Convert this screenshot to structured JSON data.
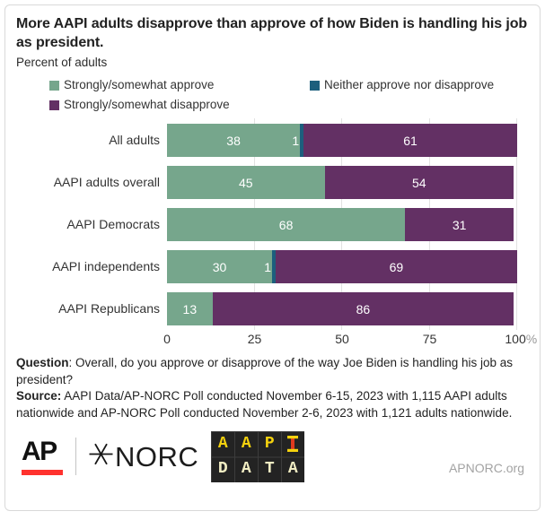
{
  "header": {
    "title": "More AAPI adults disapprove than approve of how Biden is handling his job as president.",
    "subtitle": "Percent of adults"
  },
  "legend": [
    {
      "label": "Strongly/somewhat approve",
      "color": "#76a68c"
    },
    {
      "label": "Neither approve nor disapprove",
      "color": "#1c5f7d"
    },
    {
      "label": "Strongly/somewhat disapprove",
      "color": "#633064"
    }
  ],
  "chart_data": {
    "type": "bar",
    "orientation": "horizontal-stacked",
    "title": "More AAPI adults disapprove than approve of how Biden is handling his job as president.",
    "units": "Percent of adults",
    "categories": [
      "All adults",
      "AAPI adults overall",
      "AAPI Democrats",
      "AAPI independents",
      "AAPI Republicans"
    ],
    "series": [
      {
        "name": "Strongly/somewhat approve",
        "color": "#76a68c",
        "values": [
          38,
          45,
          68,
          30,
          13
        ]
      },
      {
        "name": "Neither approve nor disapprove",
        "color": "#1c5f7d",
        "values": [
          1,
          0,
          0,
          1,
          0
        ]
      },
      {
        "name": "Strongly/somewhat disapprove",
        "color": "#633064",
        "values": [
          61,
          54,
          31,
          69,
          86
        ]
      }
    ],
    "xlim": [
      0,
      100
    ],
    "xticks": [
      {
        "label": "0",
        "pos": 0
      },
      {
        "label": "25",
        "pos": 25
      },
      {
        "label": "50",
        "pos": 50
      },
      {
        "label": "75",
        "pos": 75
      },
      {
        "label": "100",
        "suffix": "%",
        "pos": 100
      }
    ],
    "gridlines": [
      25,
      50,
      75,
      100
    ],
    "legend_position": "top",
    "value_label_color": "#ffffff"
  },
  "notes": {
    "question_label": "Question",
    "question_text": ": Overall, do you approve or disapprove of the way Joe Biden is handling his job as president?",
    "source_label": "Source:",
    "source_text": " AAPI Data/AP-NORC Poll conducted November 6-15, 2023 with 1,115 AAPI adults nationwide and AP-NORC Poll conducted November 2-6, 2023 with 1,121 adults nationwide."
  },
  "footer": {
    "ap_logo_text": "AP",
    "ap_red": "#ff322e",
    "norc_logo_text": "NORC",
    "aapi_logo_rows": [
      [
        "A",
        "A",
        "P",
        "I"
      ],
      [
        "D",
        "A",
        "T",
        "A"
      ]
    ],
    "aapi_logo_colors": {
      "background": "#232323",
      "grid": "#3c3c3c",
      "row1": "#f5d20e",
      "row2": "#f1edc3",
      "i_stem": "#e03a1e"
    },
    "website": "APNORC.org"
  }
}
